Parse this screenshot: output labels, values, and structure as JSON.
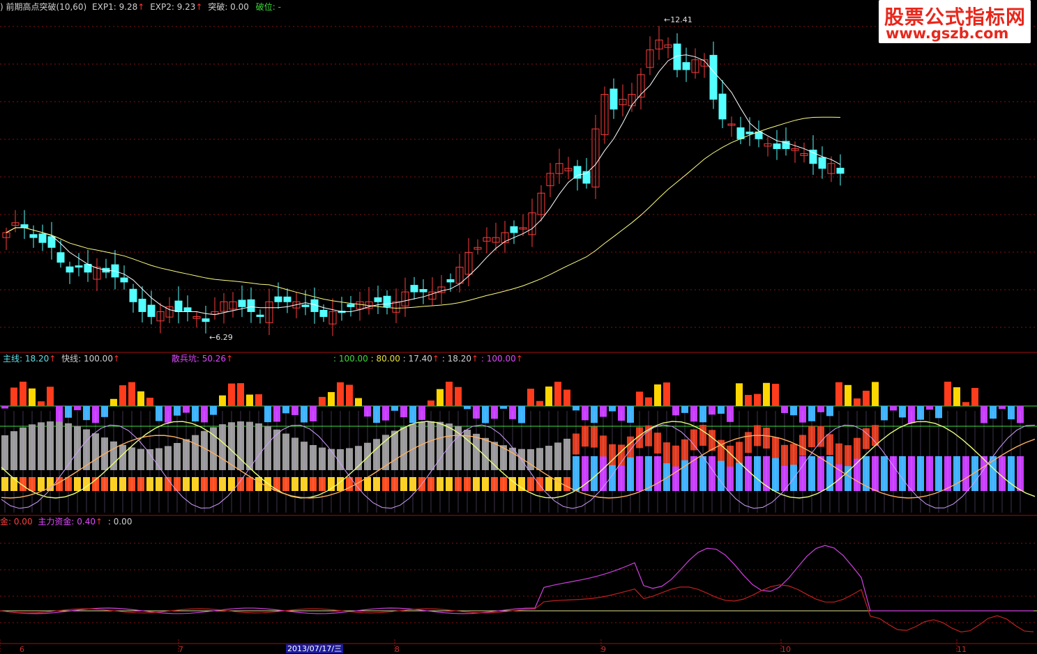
{
  "header": {
    "prefix": ") 前期高点突破(10,60)",
    "exp1": "EXP1: 9.28",
    "exp2": "EXP2: 9.23",
    "tupo": "突破: 0.00",
    "powei": "破位: -"
  },
  "sub1": {
    "main": "主线: 18.20",
    "fast": "快线: 100.00",
    "sanbing": "散兵坑: 50.26",
    "v1": ": 100.00",
    "v2": ": 80.00",
    "v3": ": 17.40",
    "v4": ": 18.20",
    "v5": ": 100.00"
  },
  "sub2": {
    "jin": "金: 0.00",
    "zhuli": "主力资金: 0.40",
    "v": ": 0.00"
  },
  "annotations": {
    "low": "6.29",
    "high": "12.41"
  },
  "logo": {
    "line1": "股票公式指标网",
    "line2": "www.gszb.com"
  },
  "xaxis": {
    "months": [
      "6",
      "7",
      "8",
      "9",
      "10",
      "11"
    ],
    "cursor_date": "2013/07/17/三"
  },
  "colors": {
    "up": "#ff3c3c",
    "down": "#54ffff",
    "ma5": "#ffffff",
    "ma60": "#ffff80",
    "grid": "#8a1010"
  },
  "chart_data": [
    {
      "type": "candlestick",
      "series_close": [
        8.3,
        8.5,
        8.4,
        8.2,
        8.1,
        8.0,
        7.7,
        7.5,
        7.6,
        7.5,
        7.6,
        7.5,
        7.4,
        7.3,
        6.9,
        6.7,
        6.6,
        6.7,
        6.8,
        6.7,
        6.7,
        6.6,
        6.5,
        6.7,
        6.9,
        6.9,
        6.8,
        6.7,
        6.6,
        6.9,
        6.9,
        6.9,
        6.9,
        6.8,
        6.7,
        6.6,
        6.7,
        6.7,
        6.8,
        6.9,
        6.9,
        6.9,
        6.8,
        6.9,
        7.1,
        7.1,
        7.1,
        7.1,
        7.2,
        7.3,
        7.6,
        7.9,
        8.0,
        8.2,
        8.2,
        8.3,
        8.3,
        8.4,
        8.7,
        9.1,
        9.5,
        9.7,
        9.6,
        9.4,
        9.3,
        10.4,
        11.1,
        10.8,
        11.0,
        11.1,
        11.5,
        12.0,
        12.2,
        12.1,
        11.6,
        11.6,
        11.8,
        11.8,
        11.0,
        10.6,
        10.5,
        10.2,
        10.3,
        10.2,
        10.1,
        10.0,
        10.0,
        10.0,
        9.9,
        9.7,
        9.6,
        9.7,
        9.5
      ],
      "low_marker": 6.29,
      "high_marker": 12.41,
      "exp1": 9.28,
      "exp2": 9.23
    },
    {
      "type": "bar",
      "title": "主线 / 快线 / 散兵坑",
      "main": 18.2,
      "fast": 100.0,
      "sanbing": 50.26
    },
    {
      "type": "line",
      "title": "主力资金",
      "jin": 0.0,
      "zhuli": 0.4
    }
  ]
}
